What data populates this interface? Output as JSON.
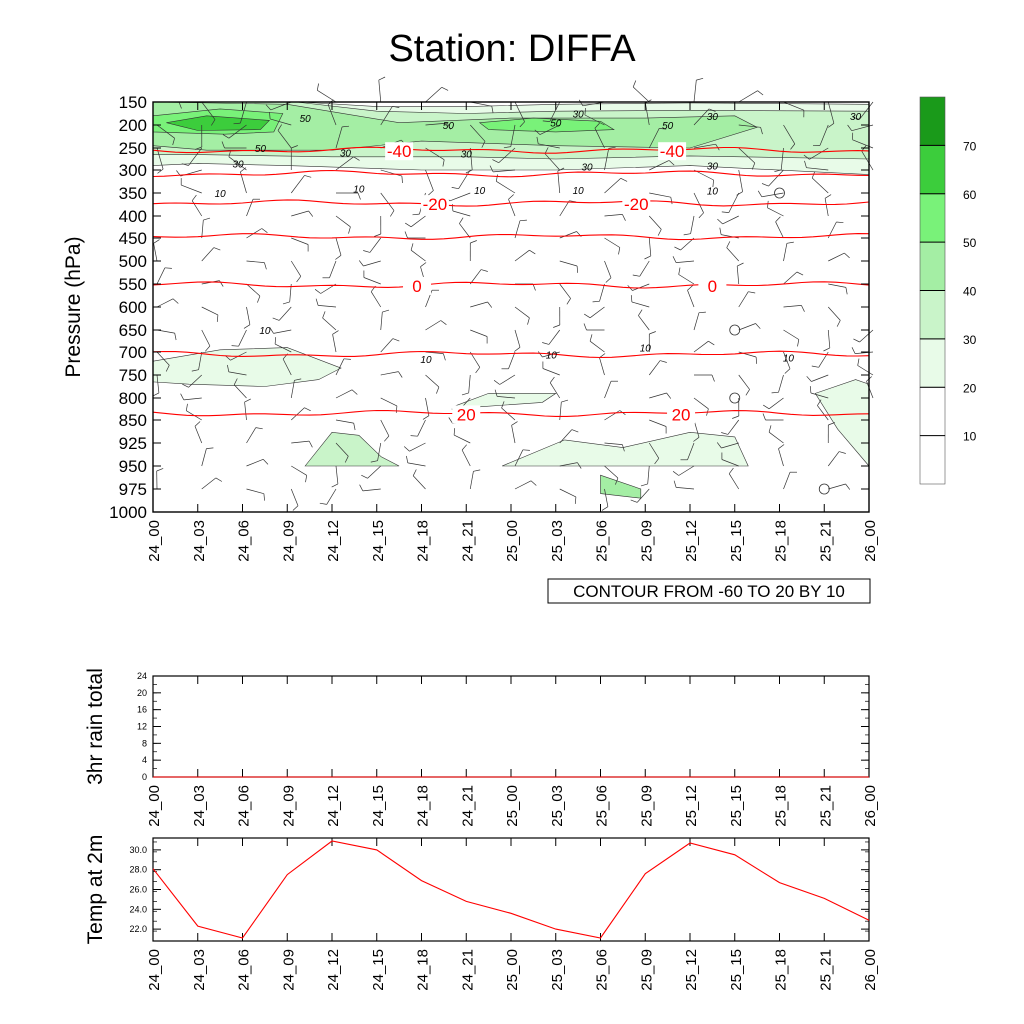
{
  "title": "Station: DIFFA",
  "colors": {
    "shading": [
      "#ffffff",
      "#ffffff",
      "#e8fbe8",
      "#c9f4c9",
      "#a4eea4",
      "#79f279",
      "#3ccd3c",
      "#1a9a1a"
    ],
    "temperature_contour": "#ff0000",
    "wind_contour": "#000000",
    "temp_line": "#ff0000"
  },
  "chart_data": [
    {
      "type": "heatmap",
      "name": "cross-section",
      "ylabel": "Pressure (hPa)",
      "pressure_levels": [
        150,
        200,
        250,
        300,
        350,
        400,
        450,
        500,
        550,
        600,
        650,
        700,
        750,
        800,
        850,
        925,
        950,
        975,
        1000
      ],
      "pressure_tick_labels": [
        "150",
        "200",
        "250",
        "300",
        "350",
        "400",
        "450",
        "500",
        "550",
        "600",
        "650",
        "700",
        "750",
        "800",
        "850",
        "925",
        "950",
        "975",
        "1000"
      ],
      "time_labels": [
        "24_00",
        "24_03",
        "24_06",
        "24_09",
        "24_12",
        "24_15",
        "24_18",
        "24_21",
        "25_00",
        "25_03",
        "25_06",
        "25_09",
        "25_12",
        "25_15",
        "25_18",
        "25_21",
        "26_00"
      ],
      "contour_info": "CONTOUR FROM -60 TO 20 BY 10",
      "colorbar": {
        "levels": [
          10,
          20,
          30,
          40,
          50,
          60,
          70
        ],
        "labels": [
          "10",
          "20",
          "30",
          "40",
          "50",
          "60",
          "70"
        ]
      },
      "temperature_contours": [
        {
          "value": -40,
          "pressure": 255,
          "labels": [
            {
              "text": "-40",
              "t": 5.5
            },
            {
              "text": "-40",
              "t": 11.6
            }
          ]
        },
        {
          "value": -30,
          "pressure": 308,
          "labels": []
        },
        {
          "value": -20,
          "pressure": 372,
          "labels": [
            {
              "text": "-20",
              "t": 6.3
            },
            {
              "text": "-20",
              "t": 10.8
            }
          ]
        },
        {
          "value": -10,
          "pressure": 447,
          "labels": []
        },
        {
          "value": 0,
          "pressure": 552,
          "labels": [
            {
              "text": "0",
              "t": 5.9
            },
            {
              "text": "0",
              "t": 12.5
            }
          ]
        },
        {
          "value": 10,
          "pressure": 705,
          "labels": []
        },
        {
          "value": 20,
          "pressure": 835,
          "labels": [
            {
              "text": "20",
              "t": 7.0
            },
            {
              "text": "20",
              "t": 11.8
            }
          ]
        }
      ],
      "wind_speed_labels": [
        {
          "text": "50",
          "t": 3.4,
          "p": 185
        },
        {
          "text": "50",
          "t": 6.6,
          "p": 200
        },
        {
          "text": "50",
          "t": 9.0,
          "p": 195
        },
        {
          "text": "50",
          "t": 11.5,
          "p": 200
        },
        {
          "text": "50",
          "t": 2.4,
          "p": 250
        },
        {
          "text": "30",
          "t": 9.5,
          "p": 175
        },
        {
          "text": "30",
          "t": 12.5,
          "p": 180
        },
        {
          "text": "30",
          "t": 15.7,
          "p": 180
        },
        {
          "text": "30",
          "t": 4.3,
          "p": 260
        },
        {
          "text": "30",
          "t": 7.0,
          "p": 262
        },
        {
          "text": "30",
          "t": 1.9,
          "p": 285
        },
        {
          "text": "30",
          "t": 9.7,
          "p": 292
        },
        {
          "text": "30",
          "t": 12.5,
          "p": 290
        },
        {
          "text": "10",
          "t": 1.5,
          "p": 350
        },
        {
          "text": "10",
          "t": 4.6,
          "p": 340
        },
        {
          "text": "10",
          "t": 7.3,
          "p": 343
        },
        {
          "text": "10",
          "t": 9.5,
          "p": 343
        },
        {
          "text": "10",
          "t": 12.5,
          "p": 345
        },
        {
          "text": "10",
          "t": 2.5,
          "p": 650
        },
        {
          "text": "10",
          "t": 6.1,
          "p": 715
        },
        {
          "text": "10",
          "t": 8.9,
          "p": 705
        },
        {
          "text": "10",
          "t": 11.0,
          "p": 690
        },
        {
          "text": "10",
          "t": 14.2,
          "p": 712
        }
      ],
      "calm_markers": [
        {
          "t": 14.0,
          "p": 350
        },
        {
          "t": 13.0,
          "p": 650
        },
        {
          "t": 13.0,
          "p": 800
        },
        {
          "t": 15.0,
          "p": 975
        }
      ]
    },
    {
      "type": "line",
      "name": "rain",
      "ylabel": "3hr rain total",
      "ylim": [
        0,
        24
      ],
      "yticks": [
        "0",
        "4",
        "8",
        "12",
        "16",
        "20",
        "24"
      ],
      "x": [
        "24_00",
        "24_03",
        "24_06",
        "24_09",
        "24_12",
        "24_15",
        "24_18",
        "24_21",
        "25_00",
        "25_03",
        "25_06",
        "25_09",
        "25_12",
        "25_15",
        "25_18",
        "25_21",
        "26_00"
      ],
      "values": [
        0,
        0,
        0,
        0,
        0,
        0,
        0,
        0,
        0,
        0,
        0,
        0,
        0,
        0,
        0,
        0,
        0
      ]
    },
    {
      "type": "line",
      "name": "temp",
      "ylabel": "Temp at 2m",
      "ylim": [
        20.8,
        31.2
      ],
      "yticks": [
        "22.0",
        "24.0",
        "26.0",
        "28.0",
        "30.0"
      ],
      "x": [
        "24_00",
        "24_03",
        "24_06",
        "24_09",
        "24_12",
        "24_15",
        "24_18",
        "24_21",
        "25_00",
        "25_03",
        "25_06",
        "25_09",
        "25_12",
        "25_15",
        "25_18",
        "25_21",
        "26_00"
      ],
      "values": [
        28.1,
        22.3,
        21.1,
        27.5,
        30.9,
        30.0,
        26.9,
        24.8,
        23.6,
        22.0,
        21.1,
        27.6,
        30.7,
        29.5,
        26.7,
        25.1,
        22.9
      ]
    }
  ]
}
